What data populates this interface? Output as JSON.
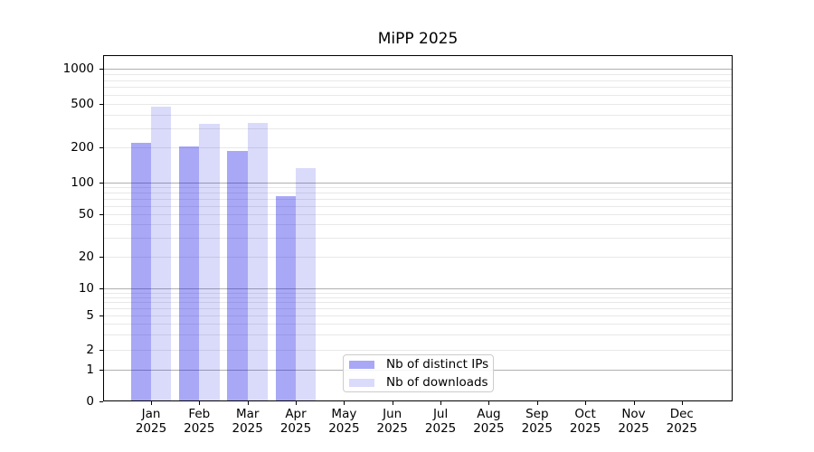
{
  "title": "MiPP 2025",
  "chart_data": {
    "type": "bar",
    "title": "MiPP 2025",
    "scale": "symlog (linear 0-1, logarithmic above 1)",
    "year_label": "2025",
    "categories": [
      "Jan",
      "Feb",
      "Mar",
      "Apr",
      "May",
      "Jun",
      "Jul",
      "Aug",
      "Sep",
      "Oct",
      "Nov",
      "Dec"
    ],
    "series": [
      {
        "name": "Nb of distinct IPs",
        "color": "rgba(0,0,230,0.34)",
        "values": [
          220,
          205,
          185,
          75,
          null,
          null,
          null,
          null,
          null,
          null,
          null,
          null
        ]
      },
      {
        "name": "Nb of downloads",
        "color": "rgba(0,0,230,0.145)",
        "values": [
          475,
          330,
          335,
          133,
          null,
          null,
          null,
          null,
          null,
          null,
          null,
          null
        ]
      }
    ],
    "y_axis": {
      "tick_labels": [
        "0",
        "1",
        "2",
        "5",
        "10",
        "20",
        "50",
        "100",
        "200",
        "500",
        "1000"
      ],
      "tick_values": [
        0,
        1,
        2,
        5,
        10,
        20,
        50,
        100,
        200,
        500,
        1000
      ],
      "major_grid": [
        1,
        10,
        100,
        1000
      ],
      "minor_grid": [
        2,
        3,
        4,
        5,
        6,
        7,
        8,
        9,
        20,
        30,
        40,
        50,
        60,
        70,
        80,
        90,
        200,
        300,
        400,
        500,
        600,
        700,
        800,
        900
      ],
      "ylim": [
        0,
        1300
      ]
    },
    "legend": {
      "entries": [
        "Nb of distinct IPs",
        "Nb of downloads"
      ],
      "position": "lower center inside plot"
    },
    "grid": true
  },
  "colors": {
    "bar_distinct_ips": "rgba(0,0,230,0.34)",
    "bar_downloads": "rgba(0,0,230,0.145)",
    "grid_major": "#b0b0b0",
    "grid_minor": "#e8e8e8",
    "spine": "#000000",
    "text": "#000000",
    "legend_border": "#cccccc"
  }
}
